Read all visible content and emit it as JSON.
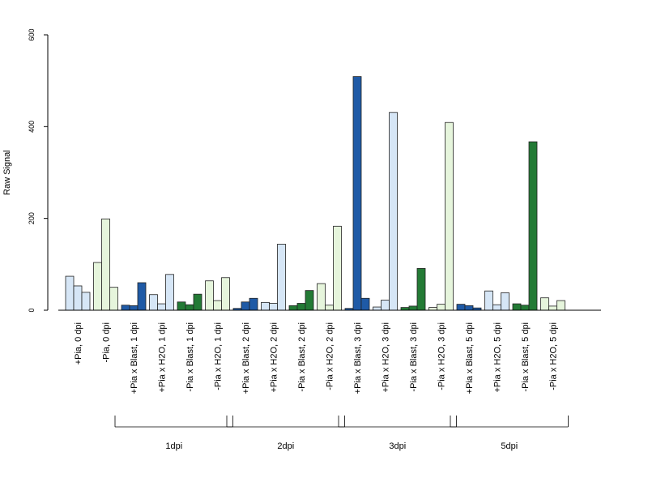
{
  "chart_data": {
    "type": "bar",
    "ylabel": "Raw Signal",
    "ylim": [
      0,
      600
    ],
    "yticks": [
      0,
      200,
      400,
      600
    ],
    "categories": [
      "+Pia, 0 dpi",
      "-Pia, 0 dpi",
      "+Pia x Blast, 1 dpi",
      "+Pia x H2O, 1 dpi",
      "-Pia x Blast, 1 dpi",
      "-Pia x H2O, 1 dpi",
      "+Pia x Blast, 2 dpi",
      "+Pia x H2O, 2 dpi",
      "-Pia x Blast, 2 dpi",
      "-Pia x H2O, 2 dpi",
      "+Pia x Blast, 3 dpi",
      "+Pia x H2O, 3 dpi",
      "-Pia x Blast, 3 dpi",
      "-Pia x H2O, 3 dpi",
      "+Pia x Blast, 5 dpi",
      "+Pia x H2O, 5 dpi",
      "-Pia x Blast, 5 dpi",
      "-Pia x H2O, 5 dpi"
    ],
    "fill_colors": [
      "#d6e6f6",
      "#e6f5dc",
      "#1f5aa6",
      "#d6e6f6",
      "#237a35",
      "#e6f5dc",
      "#1f5aa6",
      "#d6e6f6",
      "#237a35",
      "#e6f5dc",
      "#1f5aa6",
      "#d6e6f6",
      "#237a35",
      "#e6f5dc",
      "#1f5aa6",
      "#d6e6f6",
      "#237a35",
      "#e6f5dc"
    ],
    "bars_per_category": 3,
    "values": [
      [
        74,
        53,
        39
      ],
      [
        104,
        199,
        50
      ],
      [
        11,
        10,
        60
      ],
      [
        34,
        14,
        78
      ],
      [
        18,
        12,
        35
      ],
      [
        64,
        21,
        71
      ],
      [
        4,
        18,
        26
      ],
      [
        17,
        15,
        144
      ],
      [
        10,
        15,
        43
      ],
      [
        58,
        11,
        183
      ],
      [
        4,
        509,
        26
      ],
      [
        7,
        22,
        431
      ],
      [
        6,
        9,
        91
      ],
      [
        6,
        13,
        409
      ],
      [
        13,
        10,
        5
      ],
      [
        42,
        12,
        38
      ],
      [
        14,
        11,
        367
      ],
      [
        27,
        9,
        21
      ]
    ],
    "groups": [
      {
        "label": "1dpi",
        "from": 2,
        "to": 5
      },
      {
        "label": "2dpi",
        "from": 6,
        "to": 9
      },
      {
        "label": "3dpi",
        "from": 10,
        "to": 13
      },
      {
        "label": "5dpi",
        "from": 14,
        "to": 17
      }
    ],
    "grid": false,
    "legend": "none"
  }
}
